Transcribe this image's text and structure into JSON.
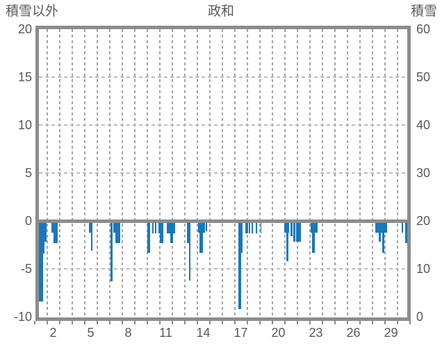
{
  "chart_data": {
    "type": "bar",
    "title": "政和",
    "left_axis": {
      "label": "積雪以外",
      "ticks": [
        20,
        15,
        10,
        5,
        0,
        -5,
        -10
      ],
      "range": [
        -10,
        20
      ]
    },
    "right_axis": {
      "label": "積雪",
      "ticks": [
        60,
        50,
        40,
        30,
        20,
        10,
        0
      ],
      "range": [
        0,
        60
      ]
    },
    "x_axis": {
      "tick_labels": [
        2,
        5,
        8,
        11,
        14,
        17,
        20,
        23,
        26,
        29
      ],
      "range_days": [
        1,
        30
      ],
      "grid_every_day": true
    },
    "legend": "none",
    "grid": "dashed",
    "bars_unit_axis": "left",
    "bars": [
      {
        "d0": 0.88,
        "d1": 1.19,
        "v": -8.4
      },
      {
        "d0": 1.19,
        "d1": 1.31,
        "v": -3.4
      },
      {
        "d0": 1.31,
        "d1": 1.47,
        "v": -2.2
      },
      {
        "d0": 1.86,
        "d1": 2.03,
        "v": -1.2
      },
      {
        "d0": 2.03,
        "d1": 2.34,
        "v": -2.3
      },
      {
        "d0": 4.88,
        "d1": 5.01,
        "v": -1.2
      },
      {
        "d0": 5.01,
        "d1": 5.16,
        "v": -3.1
      },
      {
        "d0": 6.6,
        "d1": 6.76,
        "v": -6.3
      },
      {
        "d0": 6.8,
        "d1": 6.95,
        "v": -1.2
      },
      {
        "d0": 6.95,
        "d1": 7.35,
        "v": -2.3
      },
      {
        "d0": 9.53,
        "d1": 9.75,
        "v": -3.3
      },
      {
        "d0": 9.92,
        "d1": 10.03,
        "v": -1.3
      },
      {
        "d0": 10.14,
        "d1": 10.25,
        "v": -1.3
      },
      {
        "d0": 10.42,
        "d1": 10.53,
        "v": -1.3
      },
      {
        "d0": 10.53,
        "d1": 10.81,
        "v": -2.3
      },
      {
        "d0": 11.08,
        "d1": 11.36,
        "v": -1.3
      },
      {
        "d0": 11.36,
        "d1": 11.58,
        "v": -2.3
      },
      {
        "d0": 11.58,
        "d1": 11.75,
        "v": -1.3
      },
      {
        "d0": 12.69,
        "d1": 12.86,
        "v": -2.3
      },
      {
        "d0": 12.86,
        "d1": 12.97,
        "v": -6.2
      },
      {
        "d0": 13.58,
        "d1": 13.71,
        "v": -1.2
      },
      {
        "d0": 13.71,
        "d1": 13.99,
        "v": -3.3
      },
      {
        "d0": 13.99,
        "d1": 14.14,
        "v": -1.2
      },
      {
        "d0": 14.18,
        "d1": 14.29,
        "v": -1.1
      },
      {
        "d0": 16.82,
        "d1": 17.01,
        "v": -9.2
      },
      {
        "d0": 17.01,
        "d1": 17.16,
        "v": -3.3
      },
      {
        "d0": 17.38,
        "d1": 17.58,
        "v": -1.3
      },
      {
        "d0": 17.64,
        "d1": 17.77,
        "v": -1.3
      },
      {
        "d0": 17.86,
        "d1": 17.97,
        "v": -1.3
      },
      {
        "d0": 18.21,
        "d1": 18.32,
        "v": -1.3
      },
      {
        "d0": 18.56,
        "d1": 18.65,
        "v": -1.3
      },
      {
        "d0": 20.47,
        "d1": 20.86,
        "v": -1.2
      },
      {
        "d0": 20.64,
        "d1": 20.81,
        "v": -4.2
      },
      {
        "d0": 20.97,
        "d1": 21.14,
        "v": -1.6
      },
      {
        "d0": 21.19,
        "d1": 21.36,
        "v": -2.2
      },
      {
        "d0": 21.42,
        "d1": 21.81,
        "v": -2.2
      },
      {
        "d0": 22.57,
        "d1": 23.12,
        "v": -1.2
      },
      {
        "d0": 22.71,
        "d1": 22.93,
        "v": -3.3
      },
      {
        "d0": 27.75,
        "d1": 28.68,
        "v": -1.2
      },
      {
        "d0": 28.03,
        "d1": 28.19,
        "v": -2.2
      },
      {
        "d0": 28.31,
        "d1": 28.46,
        "v": -3.3
      },
      {
        "d0": 29.84,
        "d1": 29.96,
        "v": -1.2
      },
      {
        "d0": 30.12,
        "d1": 30.3,
        "v": -2.3
      }
    ],
    "colors": {
      "bar": "#1878be",
      "frame": "#8c8c8c",
      "grid_vertical": "#a3a3a3",
      "grid_horizontal": "#bdbdbd",
      "text": "#595959",
      "background": "#ffffff"
    }
  }
}
